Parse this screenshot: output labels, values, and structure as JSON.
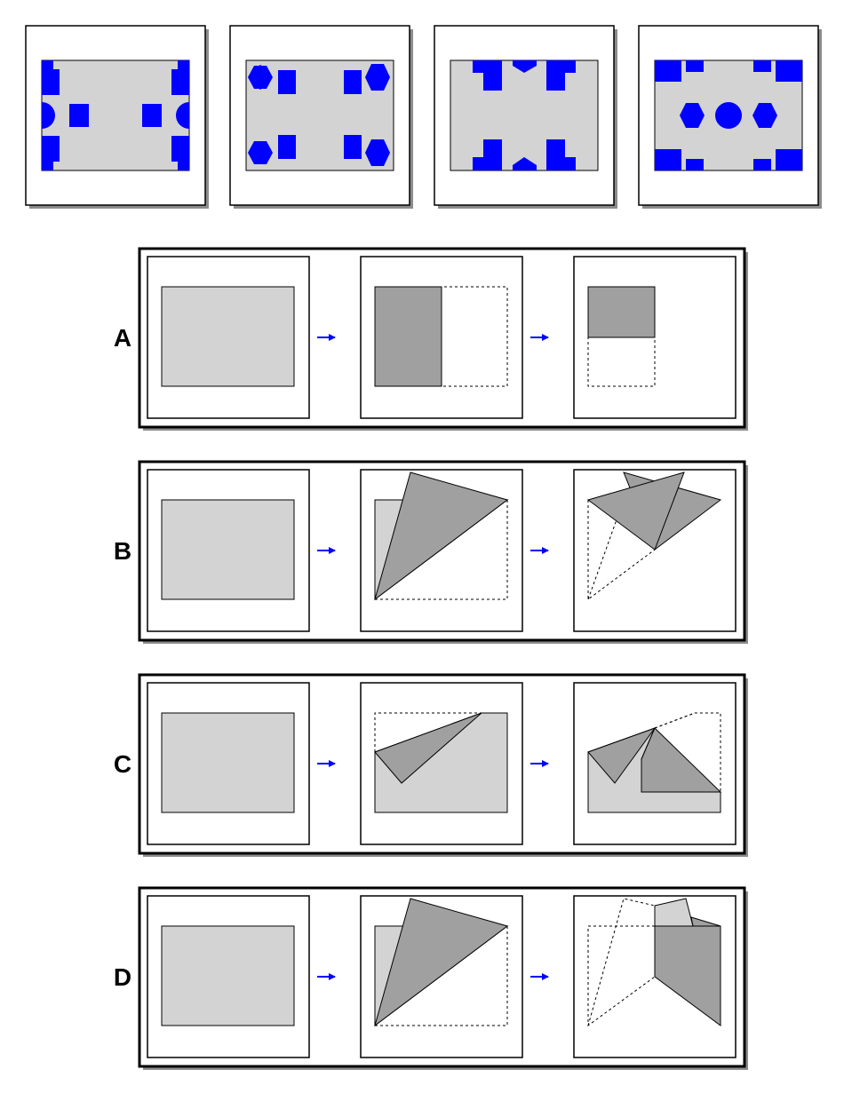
{
  "question": {
    "result_panels": [
      {
        "id": "panel-1",
        "shapes": [
          "rectangle",
          "semicircle",
          "rectangle"
        ]
      },
      {
        "id": "panel-2",
        "shapes": [
          "hexagon",
          "rectangle"
        ]
      },
      {
        "id": "panel-3",
        "shapes": [
          "rectangle",
          "notched-rectangle",
          "half-hexagon"
        ]
      },
      {
        "id": "panel-4",
        "shapes": [
          "rectangle",
          "hexagon",
          "circle"
        ]
      }
    ]
  },
  "options": [
    {
      "label": "A",
      "steps": [
        "sheet",
        "fold-left-half",
        "fold-bottom-half"
      ]
    },
    {
      "label": "B",
      "steps": [
        "sheet",
        "diagonal-fold",
        "second-fold"
      ]
    },
    {
      "label": "C",
      "steps": [
        "sheet",
        "corner-fold",
        "second-corner-fold"
      ]
    },
    {
      "label": "D",
      "steps": [
        "sheet",
        "diagonal-fold",
        "vertical-fold"
      ]
    }
  ],
  "colors": {
    "paper": "#d3d3d3",
    "folded": "#a0a0a0",
    "cutout": "#0000ff",
    "arrow": "#0000ff",
    "border": "#000000",
    "shadow": "#8c8c8c"
  }
}
